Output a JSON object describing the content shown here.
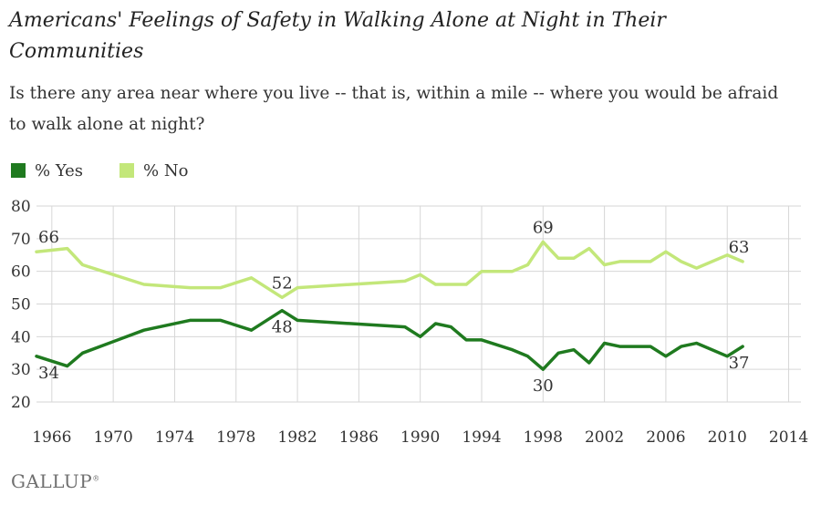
{
  "title": "Americans' Feelings of Safety in Walking Alone at Night in Their Communities",
  "subtitle": "Is there any area near where you live -- that is, within a mile -- where you would be afraid to walk alone at night?",
  "brand": "GALLUP",
  "brand_mark": "®",
  "colors": {
    "yes": "#1f7a1f",
    "no": "#c3e77a",
    "grid": "#d6d6d6",
    "text": "#333333"
  },
  "chart_data": {
    "type": "line",
    "title": "Americans' Feelings of Safety in Walking Alone at Night in Their Communities",
    "xlabel": "",
    "ylabel": "",
    "xlim": [
      1965,
      2014.8
    ],
    "ylim": [
      20,
      80
    ],
    "yticks": [
      20,
      30,
      40,
      50,
      60,
      70,
      80
    ],
    "xticks": [
      1966,
      1970,
      1974,
      1978,
      1982,
      1986,
      1990,
      1994,
      1998,
      2002,
      2006,
      2010,
      2014
    ],
    "grid": true,
    "legend": "top-left",
    "series": [
      {
        "name": "% Yes",
        "color": "#1f7a1f",
        "points": [
          [
            1965,
            34
          ],
          [
            1967,
            31
          ],
          [
            1968,
            35
          ],
          [
            1972,
            42
          ],
          [
            1975,
            45
          ],
          [
            1977,
            45
          ],
          [
            1979,
            42
          ],
          [
            1981,
            48
          ],
          [
            1982,
            45
          ],
          [
            1989,
            43
          ],
          [
            1990,
            40
          ],
          [
            1991,
            44
          ],
          [
            1992,
            43
          ],
          [
            1993,
            39
          ],
          [
            1994,
            39
          ],
          [
            1996,
            36
          ],
          [
            1997,
            34
          ],
          [
            1998,
            30
          ],
          [
            1999,
            35
          ],
          [
            2000,
            36
          ],
          [
            2001,
            32
          ],
          [
            2002,
            38
          ],
          [
            2003,
            37
          ],
          [
            2005,
            37
          ],
          [
            2006,
            34
          ],
          [
            2007,
            37
          ],
          [
            2008,
            38
          ],
          [
            2010,
            34
          ],
          [
            2011,
            37
          ]
        ]
      },
      {
        "name": "% No",
        "color": "#c3e77a",
        "points": [
          [
            1965,
            66
          ],
          [
            1967,
            67
          ],
          [
            1968,
            62
          ],
          [
            1972,
            56
          ],
          [
            1975,
            55
          ],
          [
            1977,
            55
          ],
          [
            1979,
            58
          ],
          [
            1981,
            52
          ],
          [
            1982,
            55
          ],
          [
            1989,
            57
          ],
          [
            1990,
            59
          ],
          [
            1991,
            56
          ],
          [
            1992,
            56
          ],
          [
            1993,
            56
          ],
          [
            1994,
            60
          ],
          [
            1996,
            60
          ],
          [
            1997,
            62
          ],
          [
            1998,
            69
          ],
          [
            1999,
            64
          ],
          [
            2000,
            64
          ],
          [
            2001,
            67
          ],
          [
            2002,
            62
          ],
          [
            2003,
            63
          ],
          [
            2005,
            63
          ],
          [
            2006,
            66
          ],
          [
            2007,
            63
          ],
          [
            2008,
            61
          ],
          [
            2010,
            65
          ],
          [
            2011,
            63
          ]
        ]
      }
    ],
    "annotations": [
      {
        "series": "% No",
        "x": 1965,
        "y": 66,
        "label": "66"
      },
      {
        "series": "% No",
        "x": 1981,
        "y": 52,
        "label": "52"
      },
      {
        "series": "% No",
        "x": 1998,
        "y": 69,
        "label": "69"
      },
      {
        "series": "% No",
        "x": 2011,
        "y": 63,
        "label": "63"
      },
      {
        "series": "% Yes",
        "x": 1965,
        "y": 34,
        "label": "34"
      },
      {
        "series": "% Yes",
        "x": 1981,
        "y": 48,
        "label": "48"
      },
      {
        "series": "% Yes",
        "x": 1998,
        "y": 30,
        "label": "30"
      },
      {
        "series": "% Yes",
        "x": 2011,
        "y": 37,
        "label": "37"
      }
    ]
  }
}
